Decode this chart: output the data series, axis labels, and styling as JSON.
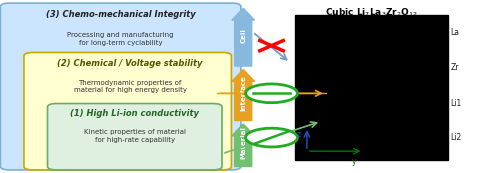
{
  "bg_color": "#ffffff",
  "box1_color": "#cce5ff",
  "box1_edge": "#7ab0d4",
  "box2_color": "#ffffd0",
  "box2_edge": "#c8a800",
  "box3_color": "#e0f0e0",
  "box3_edge": "#6aaa6a",
  "title1": "(3) Chemo-mechanical Integrity",
  "sub1": "Processing and manufacturing\nfor long-term cyclability",
  "title2": "(2) Chemical / Voltage stability",
  "sub2": "Thermodynamic properties of\nmaterial for high energy density",
  "title3": "(1) High Li-ion conductivity",
  "sub3": "Kinetic properties of material\nfor high-rate capability",
  "arrow_cell_color": "#87b8de",
  "arrow_interface_color": "#e8a020",
  "arrow_material_color": "#70c070",
  "crystal_labels": [
    "La",
    "Zr",
    "Li1",
    "Li2"
  ],
  "axis_z_color": "#2255cc",
  "axis_y_color": "#007700"
}
